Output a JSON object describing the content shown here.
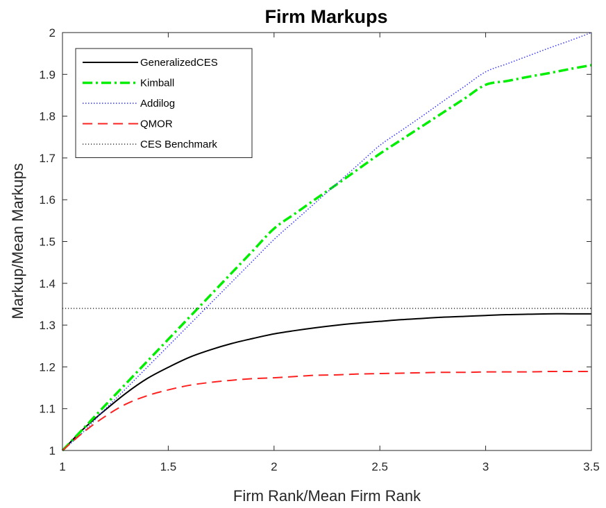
{
  "chart_data": {
    "type": "line",
    "title": "Firm Markups",
    "xlabel": "Firm Rank/Mean Firm Rank",
    "ylabel": "Markup/Mean Markups",
    "xlim": [
      1,
      3.5
    ],
    "ylim": [
      1,
      2
    ],
    "xticks": [
      1,
      1.5,
      2,
      2.5,
      3,
      3.5
    ],
    "xtick_labels": [
      "1",
      "1.5",
      "2",
      "2.5",
      "3",
      "3.5"
    ],
    "yticks": [
      1,
      1.1,
      1.2,
      1.3,
      1.4,
      1.5,
      1.6,
      1.7,
      1.8,
      1.9,
      2
    ],
    "ytick_labels": [
      "1",
      "1.1",
      "1.2",
      "1.3",
      "1.4",
      "1.5",
      "1.6",
      "1.7",
      "1.8",
      "1.9",
      "2"
    ],
    "grid": false,
    "legend_position": "top-left",
    "x": [
      1,
      1.1,
      1.2,
      1.3,
      1.4,
      1.5,
      1.6,
      1.7,
      1.8,
      1.9,
      2,
      2.1,
      2.2,
      2.3,
      2.4,
      2.5,
      2.6,
      2.7,
      2.8,
      2.9,
      3,
      3.1,
      3.2,
      3.3,
      3.4,
      3.5
    ],
    "series": [
      {
        "name": "GeneralizedCES",
        "color": "#000000",
        "style": "solid",
        "values": [
          1.0,
          1.052,
          1.096,
          1.137,
          1.172,
          1.199,
          1.223,
          1.241,
          1.256,
          1.268,
          1.279,
          1.287,
          1.294,
          1.3,
          1.305,
          1.309,
          1.313,
          1.316,
          1.319,
          1.321,
          1.323,
          1.325,
          1.326,
          1.327,
          1.327,
          1.327
        ]
      },
      {
        "name": "Kimball",
        "color": "#00ee00",
        "style": "dashdot",
        "values": [
          1.0,
          1.053,
          1.107,
          1.16,
          1.213,
          1.266,
          1.319,
          1.372,
          1.425,
          1.478,
          1.531,
          1.567,
          1.603,
          1.638,
          1.674,
          1.71,
          1.743,
          1.776,
          1.809,
          1.842,
          1.875,
          1.884,
          1.894,
          1.903,
          1.913,
          1.922
        ]
      },
      {
        "name": "Addilog",
        "color": "#3333ff",
        "style": "dotted",
        "values": [
          1.0,
          1.045,
          1.098,
          1.148,
          1.199,
          1.25,
          1.301,
          1.352,
          1.403,
          1.454,
          1.505,
          1.55,
          1.595,
          1.64,
          1.685,
          1.73,
          1.765,
          1.8,
          1.836,
          1.871,
          1.906,
          1.925,
          1.944,
          1.963,
          1.981,
          2.0
        ]
      },
      {
        "name": "QMOR",
        "color": "#ff2020",
        "style": "dashed",
        "values": [
          1.0,
          1.044,
          1.081,
          1.111,
          1.131,
          1.145,
          1.156,
          1.163,
          1.168,
          1.172,
          1.174,
          1.177,
          1.18,
          1.181,
          1.183,
          1.184,
          1.185,
          1.186,
          1.187,
          1.187,
          1.188,
          1.188,
          1.188,
          1.189,
          1.189,
          1.189
        ]
      },
      {
        "name": "CES Benchmark",
        "color": "#000000",
        "style": "densedot",
        "values": [
          1.34,
          1.34,
          1.34,
          1.34,
          1.34,
          1.34,
          1.34,
          1.34,
          1.34,
          1.34,
          1.34,
          1.34,
          1.34,
          1.34,
          1.34,
          1.34,
          1.34,
          1.34,
          1.34,
          1.34,
          1.34,
          1.34,
          1.34,
          1.34,
          1.34,
          1.34
        ]
      }
    ]
  }
}
